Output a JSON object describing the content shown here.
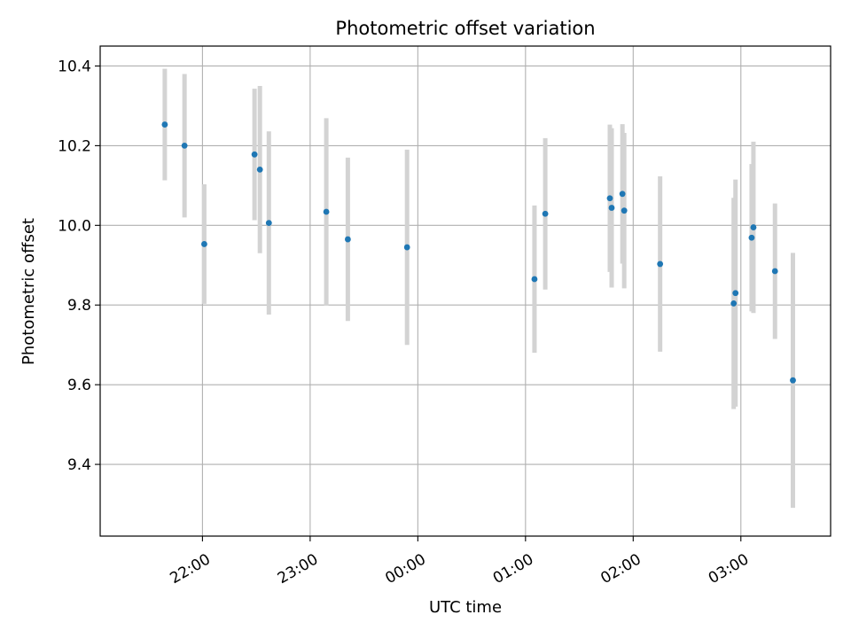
{
  "chart_data": {
    "type": "scatter",
    "title": "Photometric offset variation",
    "xlabel": "UTC time",
    "ylabel": "Photometric offset",
    "x_unit": "UTC time (HH:MM); times after midnight are the following day",
    "xlim": [
      "21:03",
      "03:50"
    ],
    "ylim": [
      9.22,
      10.45
    ],
    "x_ticks": [
      "22:00",
      "23:00",
      "00:00",
      "01:00",
      "02:00",
      "03:00"
    ],
    "y_ticks": [
      9.4,
      9.6,
      9.8,
      10.0,
      10.2,
      10.4
    ],
    "y_tick_labels": [
      "9.4",
      "9.6",
      "9.8",
      "10.0",
      "10.2",
      "10.4"
    ],
    "grid": true,
    "marker_color": "#1f77b4",
    "errorbar_color": "#d3d3d3",
    "points": [
      {
        "t": "21:39",
        "y": 10.253,
        "err": 0.14
      },
      {
        "t": "21:50",
        "y": 10.2,
        "err": 0.18
      },
      {
        "t": "22:01",
        "y": 9.953,
        "err": 0.15
      },
      {
        "t": "22:29",
        "y": 10.178,
        "err": 0.165
      },
      {
        "t": "22:32",
        "y": 10.14,
        "err": 0.21
      },
      {
        "t": "22:37",
        "y": 10.006,
        "err": 0.23
      },
      {
        "t": "23:09",
        "y": 10.034,
        "err": 0.235
      },
      {
        "t": "23:21",
        "y": 9.965,
        "err": 0.205
      },
      {
        "t": "23:54",
        "y": 9.945,
        "err": 0.245
      },
      {
        "t": "01:05",
        "y": 9.865,
        "err": 0.185
      },
      {
        "t": "01:11",
        "y": 10.029,
        "err": 0.19
      },
      {
        "t": "01:47",
        "y": 10.068,
        "err": 0.185
      },
      {
        "t": "01:48",
        "y": 10.044,
        "err": 0.2
      },
      {
        "t": "01:54",
        "y": 10.079,
        "err": 0.175
      },
      {
        "t": "01:55",
        "y": 10.037,
        "err": 0.195
      },
      {
        "t": "02:15",
        "y": 9.903,
        "err": 0.22
      },
      {
        "t": "02:56",
        "y": 9.804,
        "err": 0.265
      },
      {
        "t": "02:57",
        "y": 9.83,
        "err": 0.285
      },
      {
        "t": "03:06",
        "y": 9.969,
        "err": 0.185
      },
      {
        "t": "03:07",
        "y": 9.995,
        "err": 0.215
      },
      {
        "t": "03:19",
        "y": 9.885,
        "err": 0.17
      },
      {
        "t": "03:29",
        "y": 9.611,
        "err": 0.32
      }
    ]
  }
}
